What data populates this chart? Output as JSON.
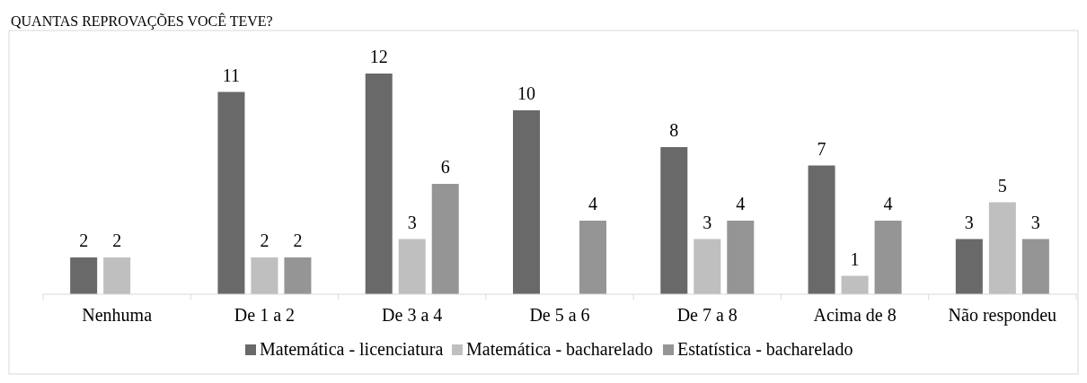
{
  "chart_data": {
    "type": "bar",
    "title": "QUANTAS REPROVAÇÕES VOCÊ TEVE?",
    "categories": [
      "Nenhuma",
      "De 1 a 2",
      "De 3 a 4",
      "De 5 a 6",
      "De 7 a 8",
      "Acima de 8",
      "Não respondeu"
    ],
    "series": [
      {
        "name": "Matemática - licenciatura",
        "color": "#696969",
        "values": [
          2,
          11,
          12,
          10,
          8,
          7,
          3
        ]
      },
      {
        "name": "Matemática - bacharelado",
        "color": "#bfbfbf",
        "values": [
          2,
          2,
          3,
          null,
          3,
          1,
          5
        ]
      },
      {
        "name": "Estatística - bacharelado",
        "color": "#959595",
        "values": [
          null,
          2,
          6,
          4,
          4,
          4,
          3
        ]
      }
    ],
    "data_labels": true,
    "legend": "bottom",
    "grid": false
  }
}
